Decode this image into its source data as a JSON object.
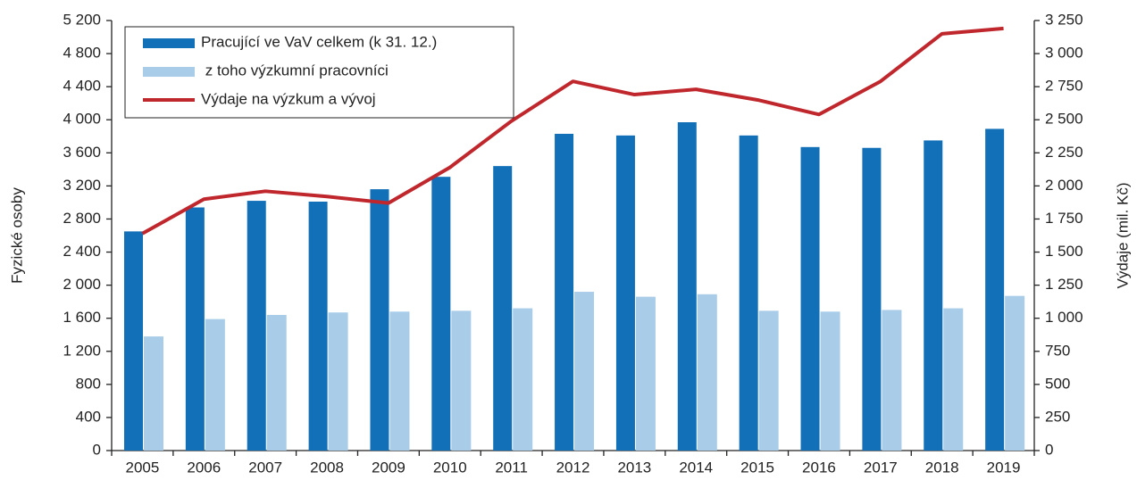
{
  "chart_data": {
    "type": "bar_line",
    "categories": [
      "2005",
      "2006",
      "2007",
      "2008",
      "2009",
      "2010",
      "2011",
      "2012",
      "2013",
      "2014",
      "2015",
      "2016",
      "2017",
      "2018",
      "2019"
    ],
    "series": [
      {
        "name": "Pracující ve VaV celkem (k 31. 12.)",
        "color": "#1170b8",
        "type": "bar",
        "values": [
          2650,
          2940,
          3020,
          3010,
          3160,
          3310,
          3440,
          3830,
          3810,
          3970,
          3810,
          3670,
          3660,
          3750,
          3890
        ]
      },
      {
        "name": " z toho výzkumní pracovníci",
        "color": "#a9cde9",
        "type": "bar",
        "values": [
          1380,
          1590,
          1640,
          1670,
          1680,
          1690,
          1720,
          1920,
          1860,
          1890,
          1690,
          1680,
          1700,
          1720,
          1870
        ]
      },
      {
        "name": "Výdaje na výzkum a vývoj",
        "color": "#c0272d",
        "type": "line",
        "axis": "y2",
        "values": [
          1640,
          1900,
          1960,
          1920,
          1870,
          2140,
          2490,
          2790,
          2690,
          2730,
          2650,
          2540,
          2790,
          3150,
          3190
        ]
      }
    ],
    "y_label": "Fyzické osoby",
    "y2_label": "Výdaje (mil. Kč)",
    "ylim": [
      0,
      5200
    ],
    "yticks": [
      0,
      400,
      800,
      {
        "value": 1200,
        "label": "1 200"
      },
      {
        "value": 1600,
        "label": "1 600"
      },
      {
        "value": 2000,
        "label": "2 000"
      },
      {
        "value": 2400,
        "label": "2 400"
      },
      {
        "value": 2800,
        "label": "2 800"
      },
      {
        "value": 3200,
        "label": "3 200"
      },
      {
        "value": 3600,
        "label": "3 600"
      },
      {
        "value": 4000,
        "label": "4 000"
      },
      {
        "value": 4400,
        "label": "4 400"
      },
      {
        "value": 4800,
        "label": "4 800"
      },
      {
        "value": 5200,
        "label": "5 200"
      }
    ],
    "y2lim": [
      0,
      3250
    ],
    "y2ticks": [
      0,
      250,
      500,
      750,
      {
        "value": 1000,
        "label": "1 000"
      },
      {
        "value": 1250,
        "label": "1 250"
      },
      {
        "value": 1500,
        "label": "1 500"
      },
      {
        "value": 1750,
        "label": "1 750"
      },
      {
        "value": 2000,
        "label": "2 000"
      },
      {
        "value": 2250,
        "label": "2 250"
      },
      {
        "value": 2500,
        "label": "2 500"
      },
      {
        "value": 2750,
        "label": "2 750"
      },
      {
        "value": 3000,
        "label": "3 000"
      },
      {
        "value": 3250,
        "label": "3 250"
      }
    ],
    "grid": false,
    "legend": "top-left"
  }
}
